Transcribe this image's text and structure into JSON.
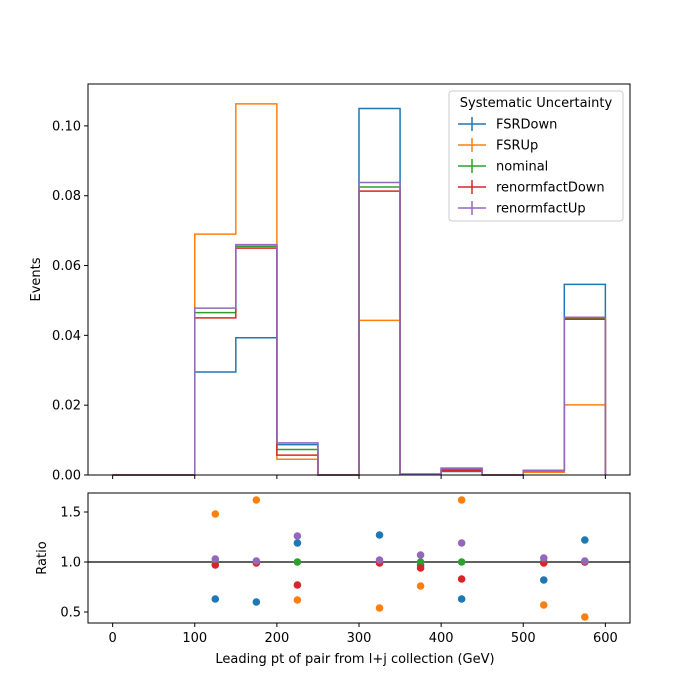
{
  "chart_data": [
    {
      "type": "step",
      "xlabel": "",
      "ylabel": "Events",
      "xlim": [
        -30,
        630
      ],
      "ylim": [
        0,
        0.112
      ],
      "yticks": [
        0.0,
        0.02,
        0.04,
        0.06,
        0.08,
        0.1
      ],
      "ytick_labels": [
        "0.00",
        "0.02",
        "0.04",
        "0.06",
        "0.08",
        "0.10"
      ],
      "bin_edges": [
        0,
        50,
        100,
        150,
        200,
        250,
        300,
        350,
        400,
        450,
        500,
        550,
        600
      ],
      "legend": {
        "title": "Systematic Uncertainty",
        "placement": "top-right"
      },
      "series": [
        {
          "name": "FSRDown",
          "color": "#1f77b4",
          "values": [
            0,
            0,
            0.0295,
            0.0393,
            0.0087,
            0,
            0.105,
            0.0003,
            0.001,
            0.0,
            0.0011,
            0.0546
          ]
        },
        {
          "name": "FSRUp",
          "color": "#ff7f0e",
          "values": [
            0,
            0,
            0.069,
            0.1063,
            0.0045,
            0,
            0.0443,
            0.0002,
            0.002,
            0.0,
            0.0008,
            0.0201
          ]
        },
        {
          "name": "nominal",
          "color": "#2ca02c",
          "values": [
            0,
            0,
            0.0465,
            0.0655,
            0.0073,
            0,
            0.0825,
            0.0002,
            0.0016,
            0.0,
            0.0013,
            0.0448
          ]
        },
        {
          "name": "renormfactDown",
          "color": "#d62728",
          "values": [
            0,
            0,
            0.045,
            0.065,
            0.0057,
            0,
            0.0813,
            0.0002,
            0.0013,
            0.0,
            0.0013,
            0.0446
          ]
        },
        {
          "name": "renormfactUp",
          "color": "#9467bd",
          "values": [
            0,
            0,
            0.0478,
            0.066,
            0.0092,
            0,
            0.0838,
            0.0002,
            0.0019,
            0.0,
            0.0013,
            0.0452
          ]
        }
      ]
    },
    {
      "type": "scatter",
      "xlabel": "Leading pt of pair from l+j collection (GeV)",
      "ylabel": "Ratio",
      "xlim": [
        -30,
        630
      ],
      "ylim": [
        0.39,
        1.69
      ],
      "yticks": [
        0.5,
        1.0,
        1.5
      ],
      "ytick_labels": [
        "0.5",
        "1.0",
        "1.5"
      ],
      "xticks": [
        0,
        100,
        200,
        300,
        400,
        500,
        600
      ],
      "xtick_labels": [
        "0",
        "100",
        "200",
        "300",
        "400",
        "500",
        "600"
      ],
      "reference_line": 1.0,
      "x": [
        125,
        175,
        225,
        325,
        375,
        425,
        525,
        575
      ],
      "series": [
        {
          "name": "FSRDown",
          "color": "#1f77b4",
          "values": [
            0.63,
            0.6,
            1.19,
            1.27,
            0.97,
            0.63,
            0.82,
            1.22
          ]
        },
        {
          "name": "FSRUp",
          "color": "#ff7f0e",
          "values": [
            1.48,
            1.62,
            0.62,
            0.54,
            0.76,
            1.62,
            0.57,
            0.45
          ]
        },
        {
          "name": "nominal",
          "color": "#2ca02c",
          "values": [
            1.0,
            1.0,
            1.0,
            1.0,
            1.0,
            1.0,
            1.0,
            1.0
          ]
        },
        {
          "name": "renormfactDown",
          "color": "#d62728",
          "values": [
            0.97,
            0.99,
            0.77,
            0.99,
            0.94,
            0.83,
            0.99,
            1.0
          ]
        },
        {
          "name": "renormfactUp",
          "color": "#9467bd",
          "values": [
            1.03,
            1.01,
            1.26,
            1.02,
            1.07,
            1.19,
            1.04,
            1.01
          ]
        }
      ]
    }
  ]
}
